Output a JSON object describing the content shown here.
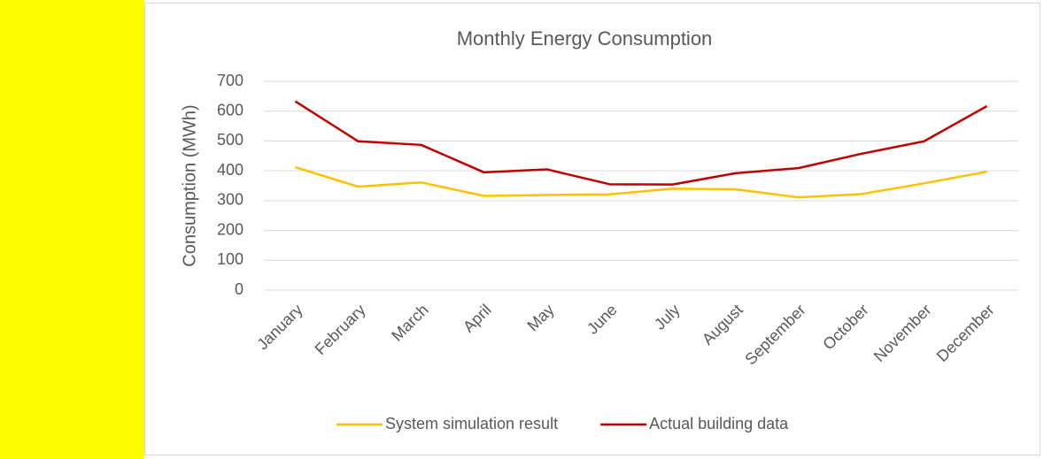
{
  "chart_data": {
    "type": "line",
    "title": "Monthly Energy Consumption",
    "y_label": "Consumption (MWh)",
    "categories": [
      "January",
      "February",
      "March",
      "April",
      "May",
      "June",
      "July",
      "August",
      "September",
      "October",
      "November",
      "December"
    ],
    "series": [
      {
        "name": "System simulation result",
        "color": "#ffc000",
        "values": [
          412,
          347,
          361,
          316,
          319,
          321,
          340,
          338,
          311,
          322,
          358,
          397
        ]
      },
      {
        "name": "Actual building data",
        "color": "#c00000",
        "values": [
          633,
          499,
          487,
          395,
          405,
          355,
          354,
          392,
          409,
          457,
          499,
          617
        ]
      }
    ],
    "ylim": [
      0,
      700
    ],
    "yticks": [
      0,
      100,
      200,
      300,
      400,
      500,
      600,
      700
    ],
    "grid": true,
    "legend": "bottom"
  }
}
